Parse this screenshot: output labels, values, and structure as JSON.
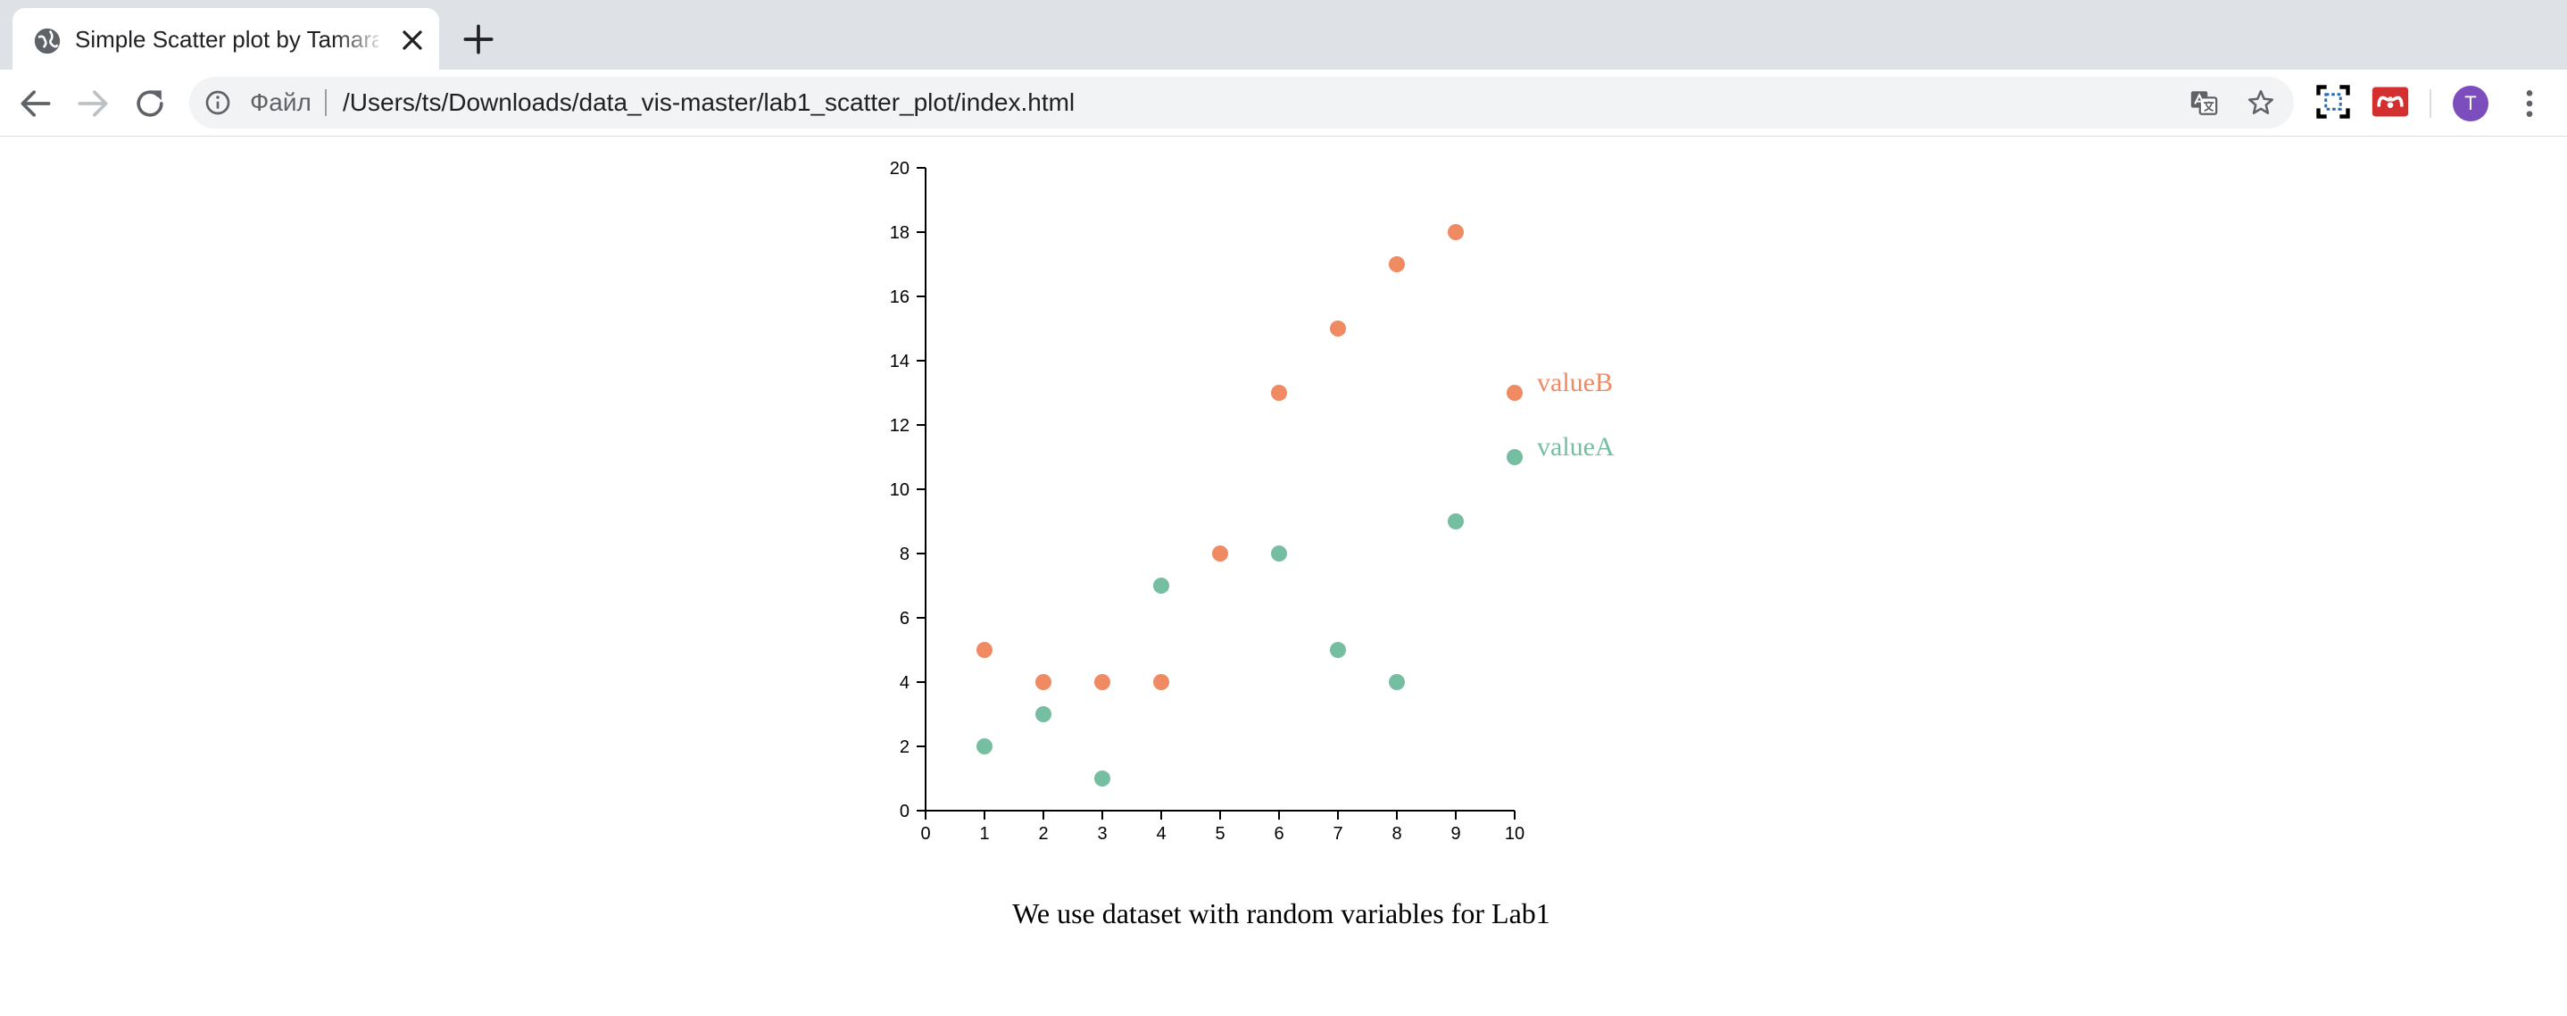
{
  "browser": {
    "tab": {
      "title": "Simple Scatter plot by Tamara Sa"
    },
    "address_bar": {
      "scheme_label": "Файл",
      "url": "/Users/ts/Downloads/data_vis-master/lab1_scatter_plot/index.html"
    },
    "profile": {
      "initial": "T",
      "color": "#7c4dbd"
    },
    "icons": [
      "globe-icon",
      "close-icon",
      "plus-icon",
      "back-arrow-icon",
      "forward-arrow-icon",
      "reload-icon",
      "info-icon",
      "translate-icon",
      "star-icon",
      "screenshot-extension-icon",
      "mendeley-extension-icon",
      "more-vert-icon"
    ]
  },
  "page": {
    "caption": "We use dataset with random variables for Lab1"
  },
  "chart_data": {
    "type": "scatter",
    "x": [
      1,
      2,
      3,
      4,
      5,
      6,
      7,
      8,
      9,
      10
    ],
    "xlim": [
      0,
      10
    ],
    "ylim": [
      0,
      20
    ],
    "x_ticks": [
      0,
      1,
      2,
      3,
      4,
      5,
      6,
      7,
      8,
      9,
      10
    ],
    "y_ticks": [
      0,
      2,
      4,
      6,
      8,
      10,
      12,
      14,
      16,
      18,
      20
    ],
    "grid": false,
    "legend_position": "right",
    "series": [
      {
        "name": "valueB",
        "color": "#ef8a62",
        "values": [
          5,
          4,
          4,
          4,
          8,
          13,
          15,
          17,
          18,
          13
        ]
      },
      {
        "name": "valueA",
        "color": "#76bea2",
        "values": [
          2,
          3,
          1,
          7,
          null,
          8,
          5,
          4,
          9,
          11
        ]
      }
    ]
  }
}
